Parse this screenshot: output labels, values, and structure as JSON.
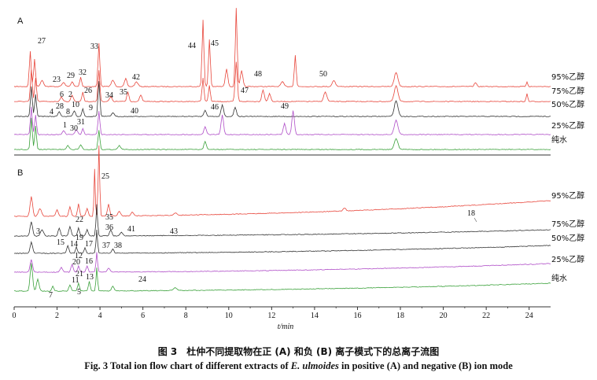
{
  "chart_data": [
    {
      "panel": "A",
      "type": "line",
      "xlabel": "t/min",
      "xlim": [
        0,
        25
      ],
      "series": [
        {
          "name": "95%乙醇",
          "color": "#e8473c"
        },
        {
          "name": "75%乙醇",
          "color": "#e8473c"
        },
        {
          "name": "50%乙醇",
          "color": "#333333"
        },
        {
          "name": "25%乙醇",
          "color": "#b04fc8"
        },
        {
          "name": "纯水",
          "color": "#3aa13a"
        }
      ],
      "peak_labels": [
        {
          "label": "27",
          "t": 1.0
        },
        {
          "label": "23",
          "t": 1.9
        },
        {
          "label": "29",
          "t": 2.6
        },
        {
          "label": "32",
          "t": 3.1
        },
        {
          "label": "33",
          "t": 3.9
        },
        {
          "label": "26",
          "t": 3.4
        },
        {
          "label": "34",
          "t": 4.3
        },
        {
          "label": "35",
          "t": 5.0
        },
        {
          "label": "42",
          "t": 5.7
        },
        {
          "label": "40",
          "t": 5.7
        },
        {
          "label": "6",
          "t": 2.2
        },
        {
          "label": "2",
          "t": 2.7
        },
        {
          "label": "28",
          "t": 2.1
        },
        {
          "label": "10",
          "t": 2.8
        },
        {
          "label": "9",
          "t": 3.6
        },
        {
          "label": "4",
          "t": 1.7
        },
        {
          "label": "8",
          "t": 2.4
        },
        {
          "label": "1",
          "t": 2.3
        },
        {
          "label": "30",
          "t": 2.8
        },
        {
          "label": "31",
          "t": 3.2
        },
        {
          "label": "44",
          "t": 8.8
        },
        {
          "label": "45",
          "t": 9.1
        },
        {
          "label": "46",
          "t": 9.6
        },
        {
          "label": "47",
          "t": 10.9
        },
        {
          "label": "48",
          "t": 11.7
        },
        {
          "label": "49",
          "t": 12.6
        },
        {
          "label": "50",
          "t": 14.6
        }
      ]
    },
    {
      "panel": "B",
      "type": "line",
      "xlabel": "t/min",
      "xlim": [
        0,
        25
      ],
      "xticks": [
        0,
        2,
        4,
        6,
        8,
        10,
        12,
        14,
        16,
        18,
        20,
        22,
        24
      ],
      "series": [
        {
          "name": "95%乙醇",
          "color": "#e8473c"
        },
        {
          "name": "75%乙醇",
          "color": "#333333"
        },
        {
          "name": "50%乙醇",
          "color": "#333333"
        },
        {
          "name": "25%乙醇",
          "color": "#b04fc8"
        },
        {
          "name": "纯水",
          "color": "#3aa13a"
        }
      ],
      "peak_labels": [
        {
          "label": "3",
          "t": 1.1
        },
        {
          "label": "25",
          "t": 4.1
        },
        {
          "label": "22",
          "t": 3.0
        },
        {
          "label": "19",
          "t": 3.0
        },
        {
          "label": "15",
          "t": 2.1
        },
        {
          "label": "14",
          "t": 2.7
        },
        {
          "label": "17",
          "t": 3.4
        },
        {
          "label": "35",
          "t": 4.5
        },
        {
          "label": "36",
          "t": 4.5
        },
        {
          "label": "41",
          "t": 5.5
        },
        {
          "label": "43",
          "t": 7.5
        },
        {
          "label": "37",
          "t": 4.5
        },
        {
          "label": "38",
          "t": 5.0
        },
        {
          "label": "12",
          "t": 2.8
        },
        {
          "label": "20",
          "t": 2.8
        },
        {
          "label": "16",
          "t": 3.5
        },
        {
          "label": "21",
          "t": 3.0
        },
        {
          "label": "11",
          "t": 2.8
        },
        {
          "label": "13",
          "t": 3.5
        },
        {
          "label": "24",
          "t": 6.0
        },
        {
          "label": "7",
          "t": 1.8
        },
        {
          "label": "5",
          "t": 3.0
        },
        {
          "label": "18",
          "t": 21.2
        }
      ]
    }
  ],
  "figure": {
    "caption_cn": "图 3　杜仲不同提取物在正 (A) 和负 (B) 离子模式下的总离子流图",
    "caption_en_pre": "Fig. 3   Total ion flow chart of different extracts of ",
    "caption_en_species": "E. ulmoides",
    "caption_en_post": " in positive (A) and negative (B) ion mode"
  }
}
